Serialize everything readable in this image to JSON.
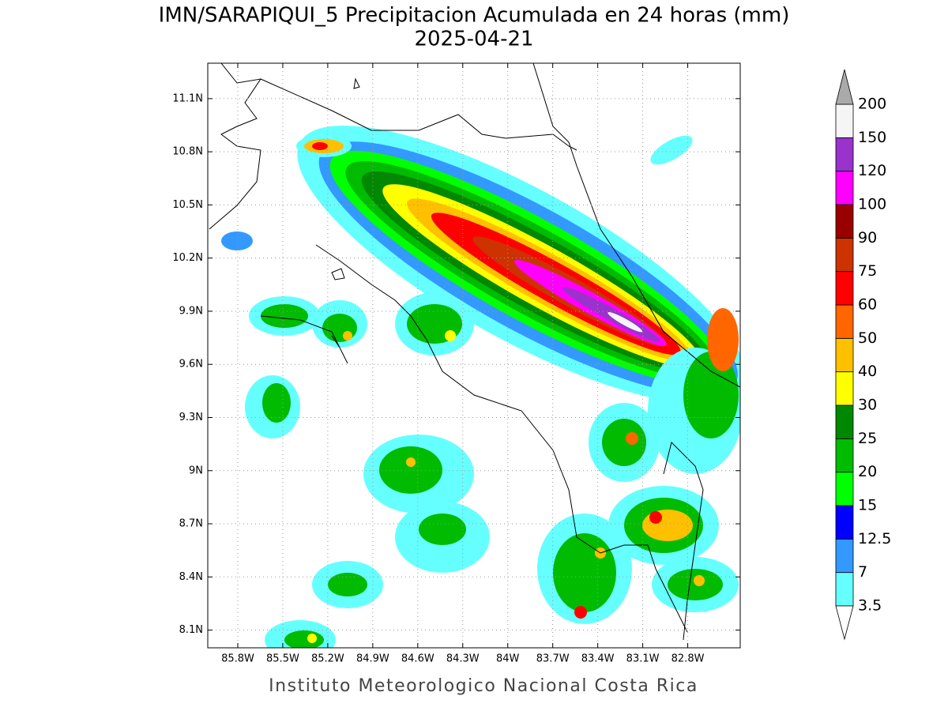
{
  "map": {
    "title": "IMN/SARAPIQUI_5 Precipitacion Acumulada en 24 horas (mm)",
    "subtitle": "2025-04-21",
    "footer": "Instituto Meteorologico Nacional Costa Rica",
    "xlim": [
      -86,
      -82.45
    ],
    "ylim": [
      8,
      11.3
    ],
    "grid": true,
    "lon_ticks": [
      {
        "value": -85.8,
        "label": "85.8W"
      },
      {
        "value": -85.5,
        "label": "85.5W"
      },
      {
        "value": -85.2,
        "label": "85.2W"
      },
      {
        "value": -84.9,
        "label": "84.9W"
      },
      {
        "value": -84.6,
        "label": "84.6W"
      },
      {
        "value": -84.3,
        "label": "84.3W"
      },
      {
        "value": -84,
        "label": "84W"
      },
      {
        "value": -83.7,
        "label": "83.7W"
      },
      {
        "value": -83.4,
        "label": "83.4W"
      },
      {
        "value": -83.1,
        "label": "83.1W"
      },
      {
        "value": -82.8,
        "label": "82.8W"
      }
    ],
    "lat_ticks": [
      {
        "value": 11.1,
        "label": "11.1N"
      },
      {
        "value": 10.8,
        "label": "10.8N"
      },
      {
        "value": 10.5,
        "label": "10.5N"
      },
      {
        "value": 10.2,
        "label": "10.2N"
      },
      {
        "value": 9.9,
        "label": "9.9N"
      },
      {
        "value": 9.6,
        "label": "9.6N"
      },
      {
        "value": 9.3,
        "label": "9.3N"
      },
      {
        "value": 9,
        "label": "9N"
      },
      {
        "value": 8.7,
        "label": "8.7N"
      },
      {
        "value": 8.4,
        "label": "8.4N"
      },
      {
        "value": 8.1,
        "label": "8.1N"
      }
    ],
    "colorbar": {
      "levels": [
        3.5,
        7,
        12.5,
        15,
        20,
        25,
        30,
        40,
        50,
        60,
        75,
        90,
        100,
        120,
        150,
        200
      ],
      "colors": [
        "#66ffff",
        "#3399ff",
        "#0000ff",
        "#00ff00",
        "#00bb00",
        "#008800",
        "#ffff00",
        "#ffc000",
        "#ff6600",
        "#ff0000",
        "#cc3300",
        "#990000",
        "#ff00ff",
        "#9933cc",
        "#f5f5f5"
      ],
      "under_color": "#ffffff",
      "over_color": "#aaaaaa"
    }
  }
}
